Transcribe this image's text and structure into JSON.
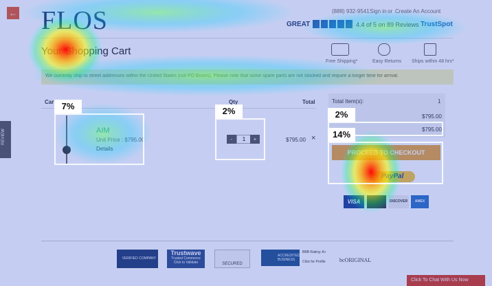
{
  "header": {
    "logo": "FLOS",
    "phone": "(888) 932-9541",
    "sign_in": "Sign in",
    "or": "or",
    "create_account": "Create An Account",
    "rating_word": "GREAT",
    "rating_text": "4.4 of 5 on 89 Reviews",
    "rating_brand": "TrustSpot"
  },
  "page_title": "Your Shopping Cart",
  "perks": [
    "Free Shipping*",
    "Easy Returns",
    "Ships within 48 hrs*"
  ],
  "notice": "We currently ship to street addresses within the United States (not PO Boxes). Please note that some spare parts are not stocked and require a longer time for arrival.",
  "table": {
    "headers": [
      "Cart",
      "Qty",
      "Total"
    ],
    "item": {
      "name": "AIM",
      "unit_price": "Unit Price : $795.00",
      "details": "Details",
      "qty": "1",
      "minus": "-",
      "plus": "+",
      "total": "$795.00",
      "remove": "×"
    }
  },
  "summary": {
    "rows": [
      {
        "label": "Total Item(s):",
        "value": "1"
      },
      {
        "value": "$795.00"
      },
      {
        "value": "$795.00"
      }
    ],
    "checkout": "PROCEED TO CHECKOUT",
    "paypal": "PayPal",
    "cards": [
      "VISA",
      "DISCOVER",
      "AMEX"
    ]
  },
  "footer_badges": [
    {
      "title": "VERIFIED COMPANY"
    },
    {
      "title": "Trustwave",
      "subtitle": "Trusted Commerce",
      "note": "Click to Validate"
    },
    {
      "title": "SECURED"
    },
    {
      "title": "ACCREDITED BUSINESS",
      "subtitle": "BBB Rating: A+",
      "note": "Click for Profile"
    },
    {
      "title": "bcORIGINAL"
    }
  ],
  "review_tab": "REVIEW",
  "chat": "Click To Chat With Us Now",
  "heat_labels": [
    "7%",
    "2%",
    "2%",
    "14%"
  ]
}
